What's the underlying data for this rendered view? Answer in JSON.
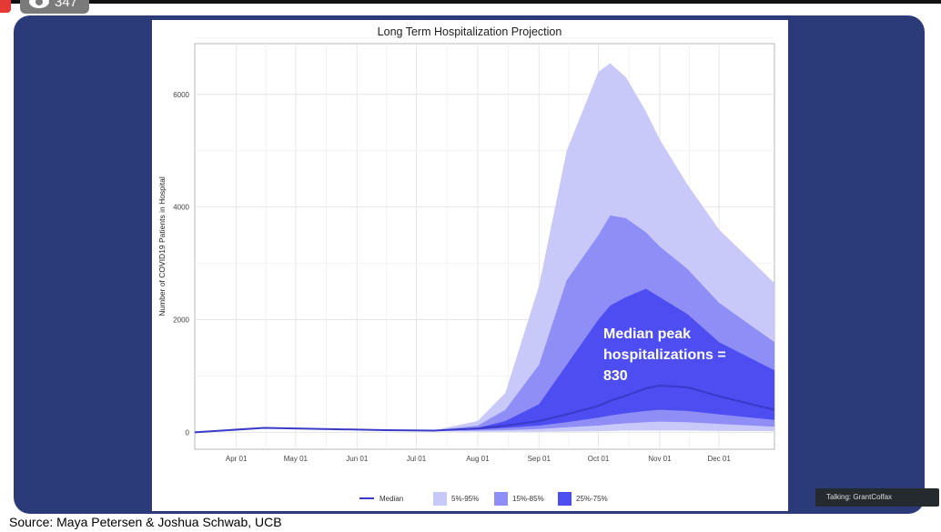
{
  "viewer_badge": {
    "icon": "eye-icon",
    "count": "347"
  },
  "source": "Source: Maya Petersen & Joshua Schwab, UCB",
  "talking": "Talking: GrantColfax",
  "annotation": [
    "Median peak",
    "hospitalizations =",
    "830"
  ],
  "chart_data": {
    "type": "area",
    "title": "Long Term Hospitalization Projection",
    "xlabel": "",
    "ylabel": "Number of COVID19 Patients in Hospital",
    "xlim": [
      "2020-03-11",
      "2020-12-29"
    ],
    "ylim": [
      -300,
      6900
    ],
    "grid": true,
    "legend_position": "bottom",
    "x_ticks": [
      [
        "2020-04-01",
        "Apr 01"
      ],
      [
        "2020-05-01",
        "May 01"
      ],
      [
        "2020-06-01",
        "Jun 01"
      ],
      [
        "2020-07-01",
        "Jul 01"
      ],
      [
        "2020-08-01",
        "Aug 01"
      ],
      [
        "2020-09-01",
        "Sep 01"
      ],
      [
        "2020-10-01",
        "Oct 01"
      ],
      [
        "2020-11-01",
        "Nov 01"
      ],
      [
        "2020-12-01",
        "Dec 01"
      ]
    ],
    "y_ticks": [
      0,
      2000,
      4000,
      6000
    ],
    "x": [
      "2020-03-11",
      "2020-04-15",
      "2020-05-15",
      "2020-06-15",
      "2020-07-10",
      "2020-08-01",
      "2020-08-15",
      "2020-09-01",
      "2020-09-15",
      "2020-10-01",
      "2020-10-07",
      "2020-10-15",
      "2020-10-25",
      "2020-11-01",
      "2020-11-15",
      "2020-12-01",
      "2020-12-29"
    ],
    "series": [
      {
        "name": "5%-95%",
        "color": "#c9c9f9",
        "lower": [
          0,
          70,
          50,
          30,
          20,
          10,
          10,
          10,
          15,
          20,
          25,
          30,
          30,
          30,
          30,
          25,
          20
        ],
        "upper": [
          0,
          90,
          70,
          50,
          40,
          200,
          700,
          2600,
          5000,
          6400,
          6550,
          6300,
          5700,
          5200,
          4400,
          3600,
          2650
        ]
      },
      {
        "name": "15%-85%",
        "color": "#8e8ef6",
        "lower": [
          0,
          75,
          55,
          35,
          25,
          30,
          40,
          60,
          90,
          120,
          140,
          160,
          180,
          190,
          180,
          150,
          100
        ],
        "upper": [
          0,
          85,
          65,
          45,
          35,
          120,
          400,
          1200,
          2700,
          3500,
          3850,
          3800,
          3550,
          3300,
          2900,
          2300,
          1600
        ]
      },
      {
        "name": "25%-75%",
        "color": "#4d4df2",
        "lower": [
          0,
          78,
          58,
          38,
          28,
          50,
          80,
          120,
          180,
          260,
          300,
          340,
          380,
          400,
          380,
          320,
          220
        ],
        "upper": [
          0,
          82,
          62,
          42,
          32,
          80,
          200,
          500,
          1200,
          2000,
          2250,
          2400,
          2550,
          2400,
          2100,
          1600,
          1100
        ]
      },
      {
        "name": "Median",
        "color": "#3a3ac8",
        "values": [
          0,
          80,
          60,
          40,
          30,
          70,
          120,
          200,
          320,
          470,
          560,
          650,
          780,
          830,
          800,
          640,
          400
        ]
      }
    ]
  }
}
